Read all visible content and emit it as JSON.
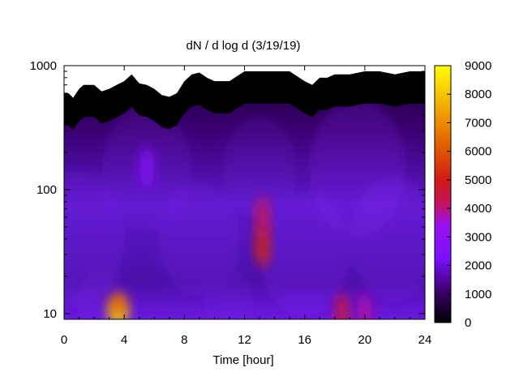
{
  "chart_data": {
    "type": "heatmap",
    "title": "dN / d log d (3/19/19)",
    "xlabel": "Time [hour]",
    "ylabel": "",
    "x_range": [
      0,
      24
    ],
    "x_ticks": [
      0,
      4,
      8,
      12,
      16,
      20,
      24
    ],
    "y_scale": "log",
    "y_range": [
      9,
      1000
    ],
    "y_ticks": [
      10,
      100,
      1000
    ],
    "colorbar": {
      "range": [
        0,
        9000
      ],
      "ticks": [
        0,
        1000,
        2000,
        3000,
        4000,
        5000,
        6000,
        7000,
        8000,
        9000
      ],
      "palette": "black-purple-red-orange-yellow"
    },
    "grid": false,
    "hotspots": [
      {
        "time": 3.6,
        "diameter": 10,
        "value": 8500
      },
      {
        "time": 3.6,
        "diameter": 12,
        "value": 6500
      },
      {
        "time": 13.2,
        "diameter": 35,
        "value": 5200
      },
      {
        "time": 13.2,
        "diameter": 60,
        "value": 4200
      },
      {
        "time": 18.5,
        "diameter": 10,
        "value": 4500
      },
      {
        "time": 20,
        "diameter": 10,
        "value": 3800
      },
      {
        "time": 5.5,
        "diameter": 150,
        "value": 2600
      }
    ],
    "upper_limit_boundary": {
      "time": [
        0,
        0.3,
        0.6,
        1,
        1.3,
        2,
        2.5,
        3,
        3.5,
        4,
        4.5,
        5,
        5.5,
        6,
        6.5,
        7,
        7.5,
        8,
        8.5,
        9,
        9.5,
        10,
        11,
        12,
        13,
        14,
        15,
        16,
        16.5,
        17,
        17.5,
        18,
        19,
        20,
        21,
        22,
        23,
        24
      ],
      "diameter": [
        600,
        600,
        550,
        650,
        700,
        700,
        620,
        650,
        700,
        750,
        850,
        720,
        700,
        650,
        580,
        560,
        600,
        750,
        850,
        880,
        800,
        750,
        750,
        900,
        900,
        900,
        900,
        750,
        700,
        800,
        800,
        850,
        850,
        900,
        900,
        850,
        900,
        900
      ]
    }
  }
}
